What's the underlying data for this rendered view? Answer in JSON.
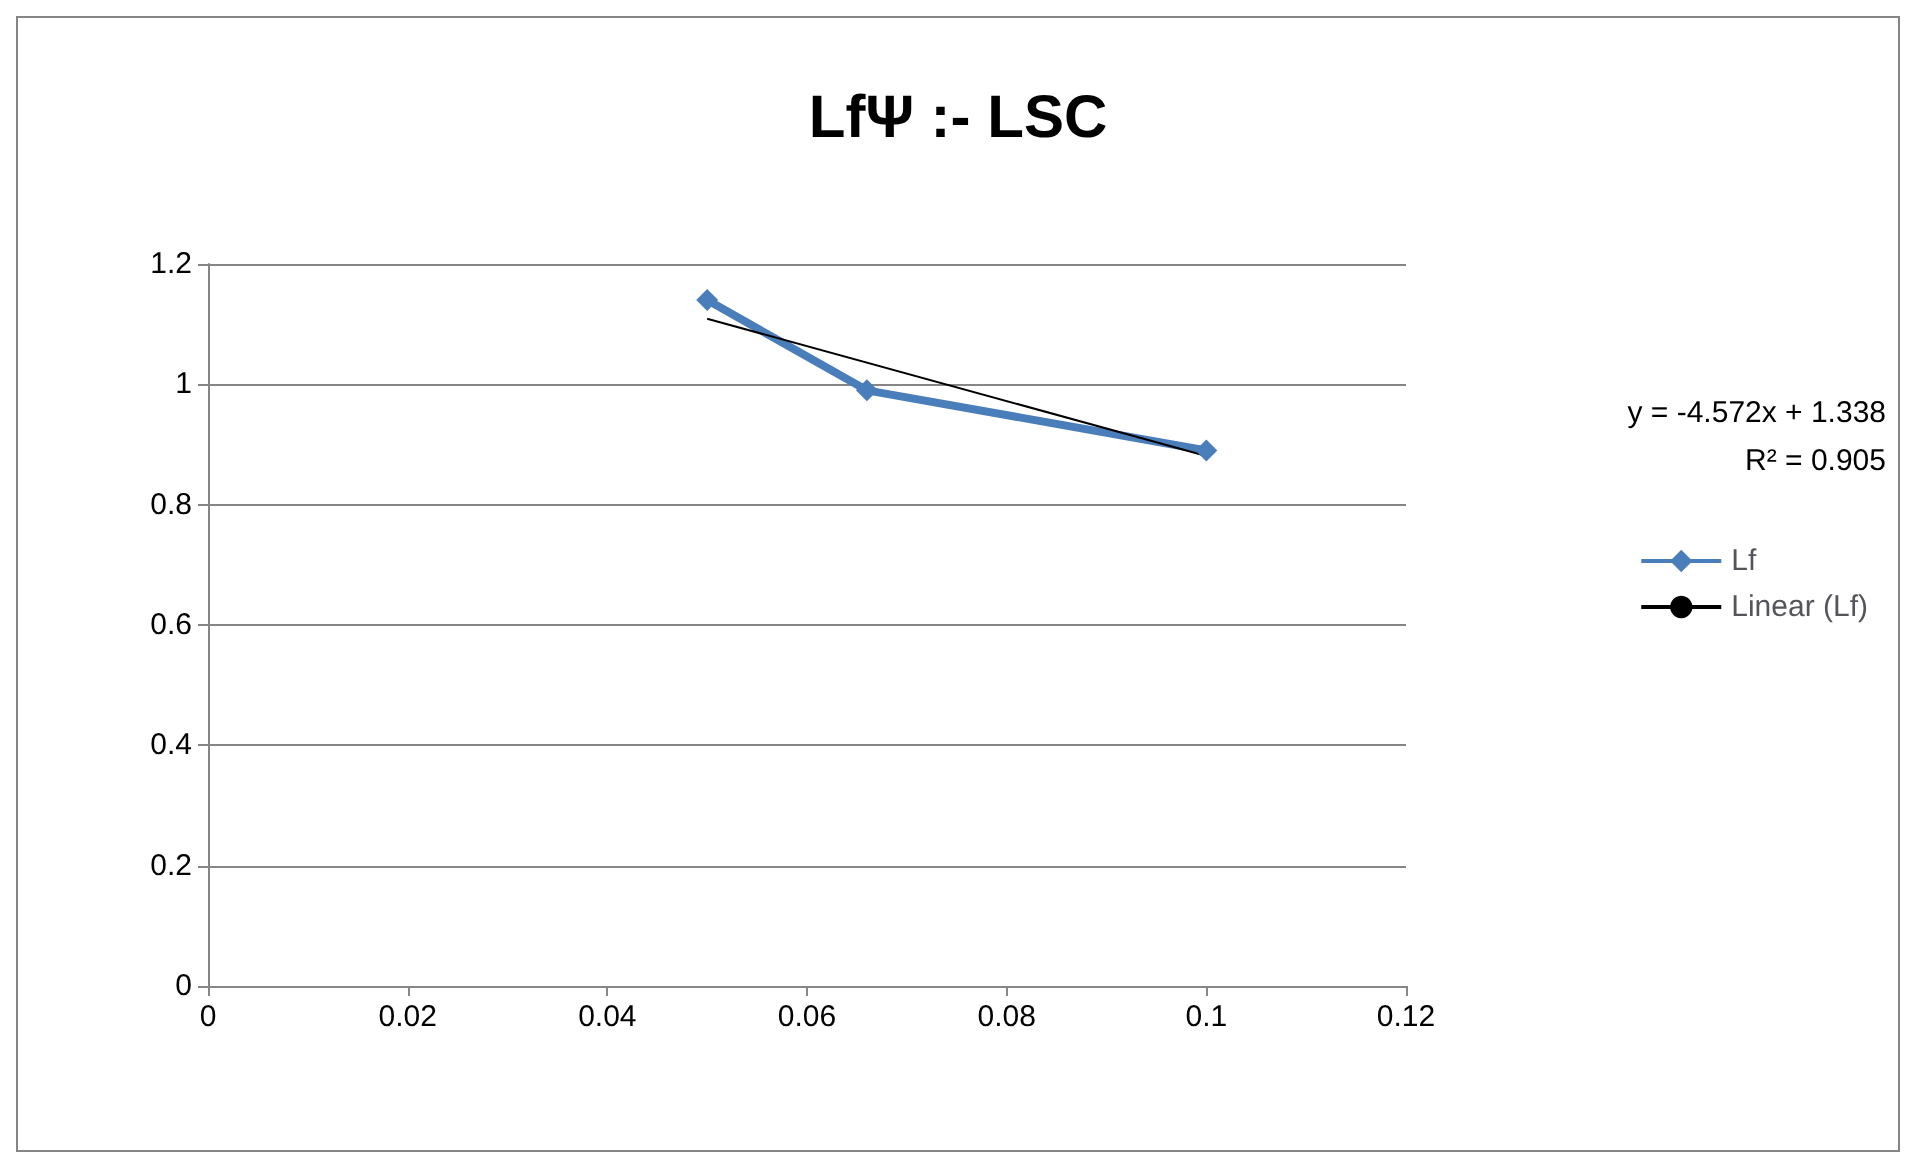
{
  "chart_data": {
    "type": "line",
    "title": "LfΨ :- LSC",
    "x": [
      0.05,
      0.066,
      0.1
    ],
    "series": [
      {
        "name": "Lf",
        "color": "#4a7ebb",
        "values": [
          1.14,
          0.99,
          0.89
        ],
        "marker": "diamond"
      },
      {
        "name": "Linear (Lf)",
        "type": "line",
        "color": "#000000",
        "x": [
          0.05,
          0.1
        ],
        "values": [
          1.109,
          0.881
        ],
        "marker": "none"
      }
    ],
    "xlim": [
      0,
      0.12
    ],
    "xticks": [
      0,
      0.02,
      0.04,
      0.06,
      0.08,
      0.1,
      0.12
    ],
    "ylim": [
      0,
      1.2
    ],
    "yticks": [
      0,
      0.2,
      0.4,
      0.6,
      0.8,
      1,
      1.2
    ],
    "grid": "y",
    "legend": "right",
    "annotations": [
      "y = -4.572x + 1.338",
      "R² = 0.905"
    ]
  }
}
